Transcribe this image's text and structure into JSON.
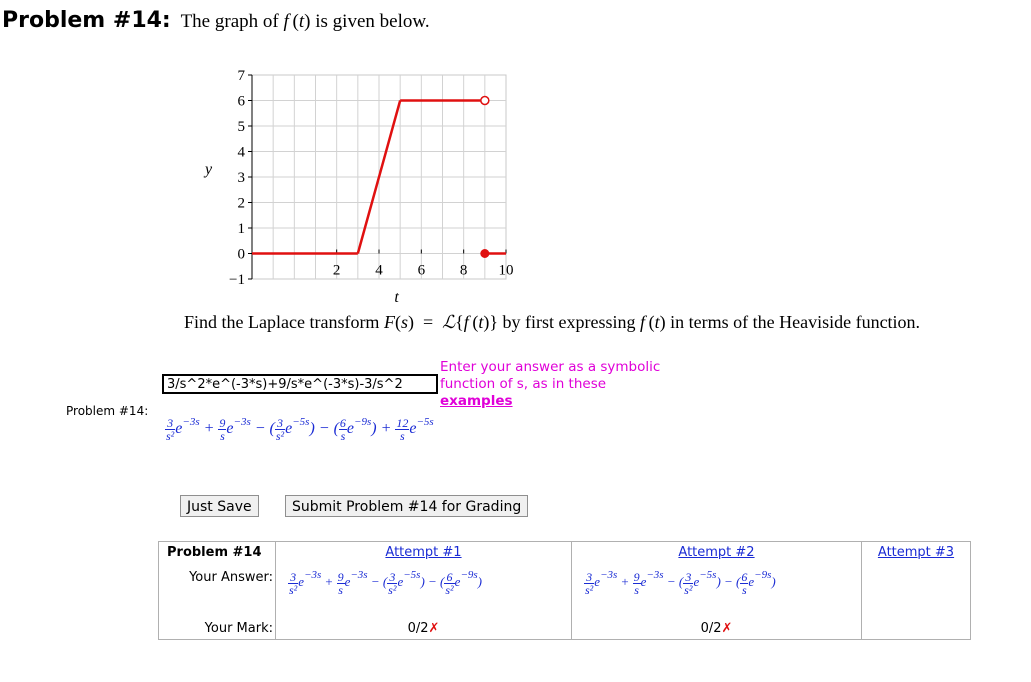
{
  "header": {
    "problem_label": "Problem #14:",
    "prompt": "The graph of f (t) is given below."
  },
  "graph": {
    "ylabel": "y",
    "xlabel": "t",
    "y_ticks": [
      "7",
      "6",
      "5",
      "4",
      "3",
      "2",
      "1",
      "0",
      "−1"
    ],
    "x_ticks": [
      "2",
      "4",
      "6",
      "8",
      "10"
    ],
    "x_range": [
      -2,
      10
    ],
    "y_range": [
      -1,
      7
    ],
    "piecewise": [
      {
        "x": [
          -2,
          3
        ],
        "y": [
          0,
          0
        ]
      },
      {
        "x": [
          3,
          5
        ],
        "y": [
          0,
          6
        ]
      },
      {
        "x": [
          5,
          9
        ],
        "y": [
          6,
          6
        ]
      },
      {
        "x": [
          9,
          10
        ],
        "y": [
          0,
          0
        ]
      }
    ],
    "open_point": [
      9,
      6
    ],
    "closed_point": [
      9,
      0
    ],
    "line_color": "#e01010"
  },
  "question": "Find the Laplace transform F(s) = ℒ{f (t)} by first expressing f (t) in terms of the Heaviside function.",
  "answer": {
    "side_label": "Problem #14:",
    "input_value": "3/s^2*e^(-3*s)+9/s*e^(-3*s)-3/s^2",
    "hint_line1": "Enter your answer as a symbolic",
    "hint_line2": "function of s, as in these",
    "hint_link": "examples"
  },
  "buttons": {
    "save": "Just Save",
    "submit": "Submit Problem #14 for Grading"
  },
  "attempts": {
    "row_header": "Problem #14",
    "answer_label": "Your Answer:",
    "mark_label": "Your Mark:",
    "attempt1": "Attempt #1",
    "attempt2": "Attempt #2",
    "attempt3": "Attempt #3",
    "mark1": "0/2",
    "mark2": "0/2",
    "cross": "✗"
  }
}
